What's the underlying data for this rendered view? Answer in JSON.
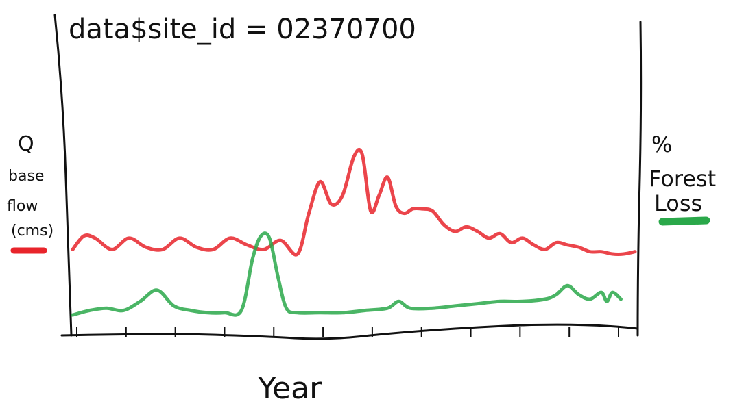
{
  "chart_data": {
    "type": "line",
    "title": "data$site_id = 02370700",
    "xlabel": "Year",
    "ylabel_left": {
      "lines": [
        "Q",
        "base",
        "flow",
        "(cms)"
      ],
      "swatch_color": "#e8242b"
    },
    "ylabel_right": {
      "lines": [
        "%",
        "Forest",
        "Loss"
      ],
      "swatch_color": "#2aa84a"
    },
    "x_range": [
      0,
      100
    ],
    "y_range": [
      0,
      100
    ],
    "grid": false,
    "series": [
      {
        "color": "#e8242b",
        "axis": "left",
        "x": [
          0,
          2,
          4,
          7,
          10,
          13,
          16,
          19,
          22,
          25,
          28,
          31,
          34,
          37,
          40,
          42,
          44,
          46,
          48,
          50,
          51.5,
          53,
          54.5,
          56,
          57.5,
          59,
          60.5,
          62,
          64,
          66,
          68,
          70,
          72,
          74,
          76,
          78,
          80,
          82,
          84,
          86,
          88,
          90,
          92,
          94,
          96,
          98,
          100
        ],
        "y": [
          32,
          38,
          37,
          32,
          37,
          33,
          32,
          37,
          33,
          32,
          37,
          34,
          32,
          36,
          30,
          48,
          62,
          52,
          56,
          73,
          74,
          49,
          56,
          64,
          51,
          48,
          50,
          50,
          49,
          43,
          40,
          42,
          40,
          37,
          39,
          35,
          37,
          34,
          32,
          35,
          34,
          33,
          31,
          31,
          30,
          30,
          31
        ]
      },
      {
        "color": "#2aa84a",
        "axis": "right",
        "x": [
          0,
          3,
          6,
          9,
          12,
          15,
          18,
          21,
          24,
          27,
          30,
          32,
          33.5,
          35,
          36.5,
          38,
          40,
          44,
          48,
          52,
          56,
          58,
          60,
          64,
          68,
          72,
          76,
          80,
          84,
          86,
          88,
          90,
          92,
          94,
          95,
          96,
          97.5
        ],
        "y": [
          3,
          5,
          6,
          5,
          9,
          14,
          7,
          5,
          4,
          4,
          5,
          28,
          38,
          37,
          20,
          6,
          4,
          4,
          4,
          5,
          6,
          9,
          6,
          6,
          7,
          8,
          9,
          9,
          10,
          12,
          16,
          12,
          10,
          13,
          9,
          13,
          10
        ]
      }
    ],
    "x_ticks": [
      "",
      "",
      "",
      "",
      "",
      "",
      "",
      "",
      "",
      "",
      "",
      ""
    ]
  }
}
